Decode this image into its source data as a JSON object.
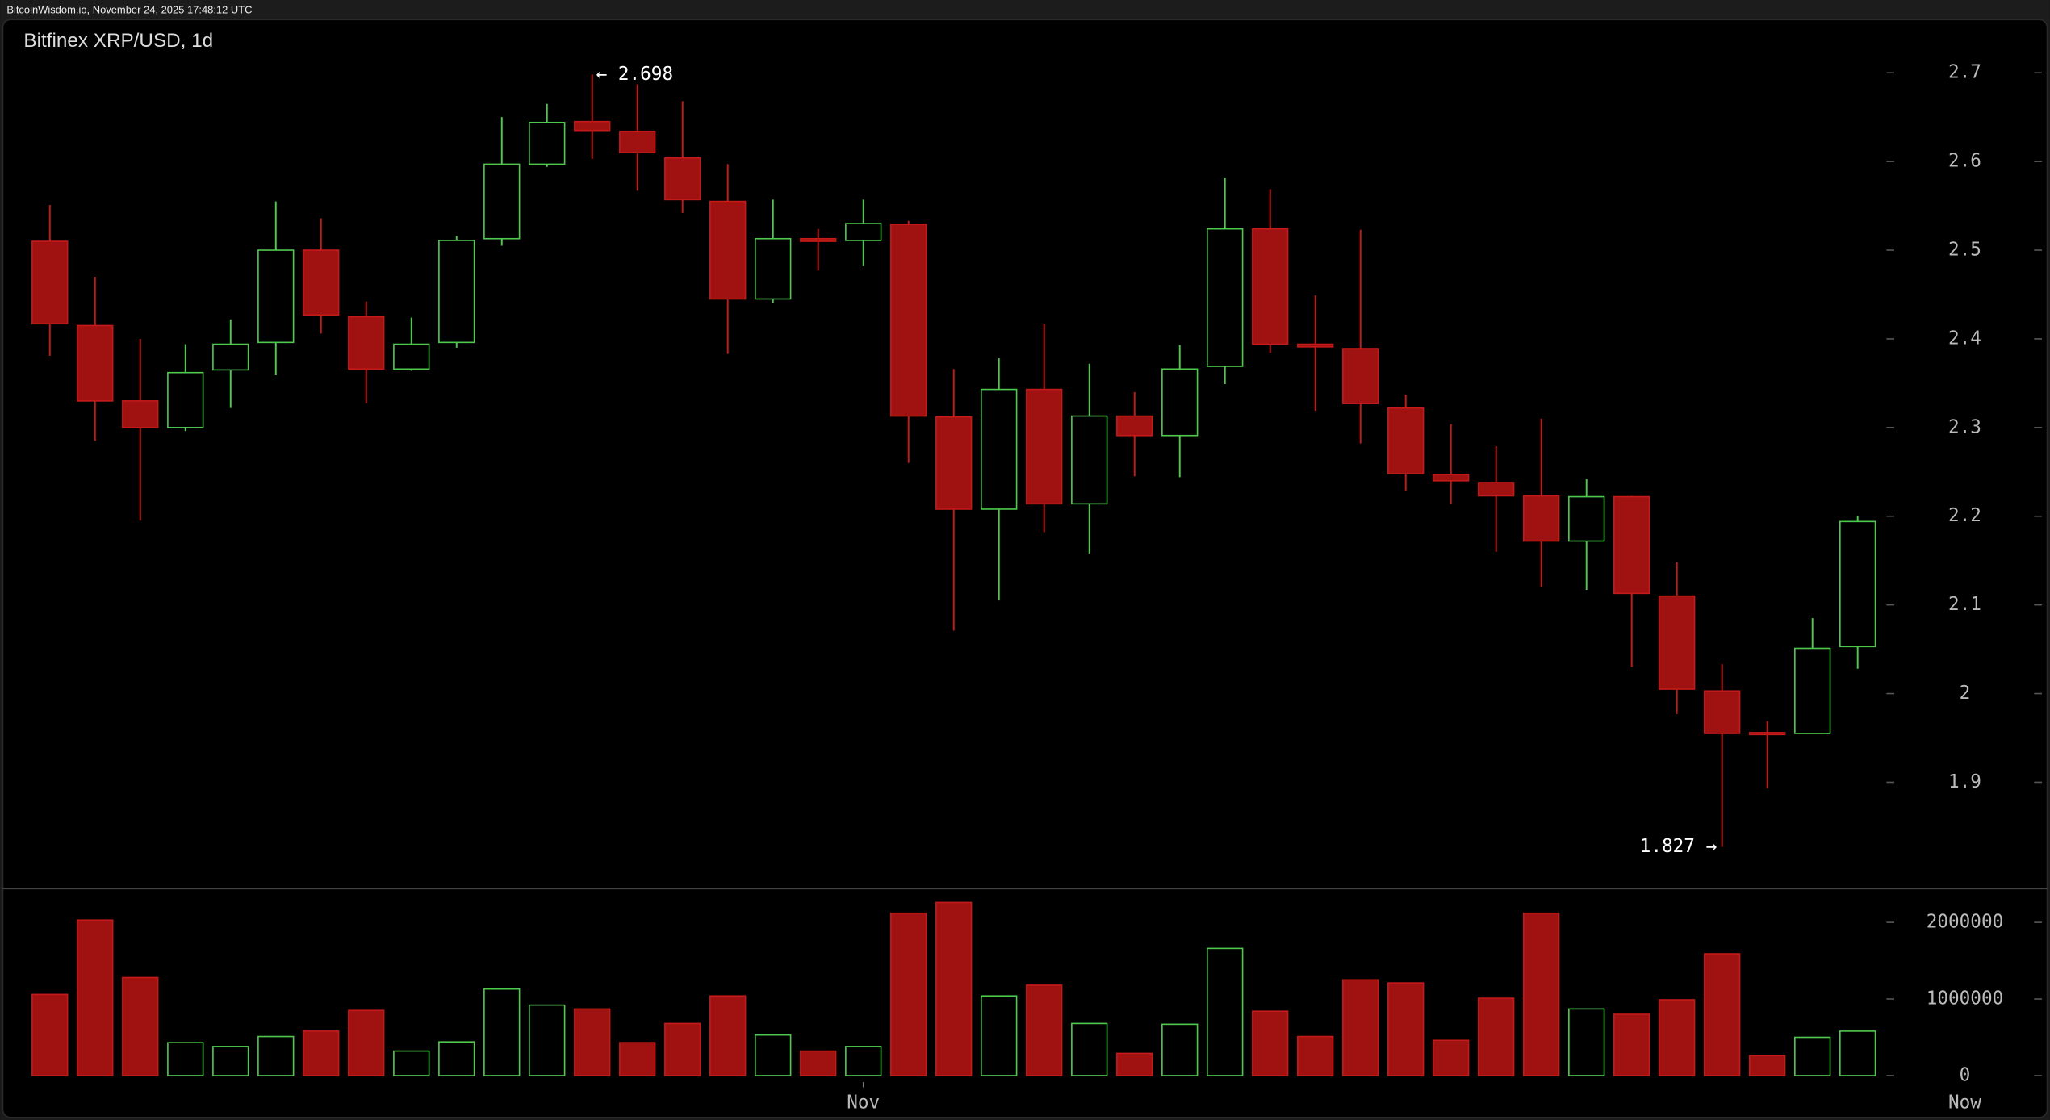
{
  "header": "BitcoinWisdom.io, November 24, 2025 17:48:12 UTC",
  "chart_data": {
    "type": "candlestick",
    "title": "Bitfinex XRP/USD, 1d",
    "categories": [
      null,
      null,
      null,
      null,
      null,
      null,
      null,
      null,
      null,
      null,
      null,
      null,
      null,
      null,
      null,
      null,
      null,
      null,
      "Nov",
      null,
      null,
      null,
      null,
      null,
      null,
      null,
      null,
      null,
      null,
      null,
      null,
      null,
      null,
      null,
      null,
      null,
      null,
      null,
      null,
      null,
      null
    ],
    "x_end_label": "Now",
    "open": [
      2.51,
      2.415,
      2.33,
      2.3,
      2.365,
      2.396,
      2.5,
      2.425,
      2.366,
      2.396,
      2.513,
      2.597,
      2.645,
      2.634,
      2.604,
      2.555,
      2.445,
      2.513,
      2.511,
      2.529,
      2.312,
      2.208,
      2.343,
      2.214,
      2.313,
      2.291,
      2.369,
      2.524,
      2.394,
      2.389,
      2.322,
      2.247,
      2.238,
      2.223,
      2.172,
      2.222,
      2.11,
      2.003,
      1.956,
      1.955,
      2.053
    ],
    "high": [
      2.551,
      2.47,
      2.4,
      2.394,
      2.422,
      2.555,
      2.536,
      2.442,
      2.424,
      2.516,
      2.65,
      2.665,
      2.698,
      2.687,
      2.668,
      2.597,
      2.557,
      2.524,
      2.557,
      2.533,
      2.366,
      2.378,
      2.417,
      2.372,
      2.34,
      2.393,
      2.582,
      2.569,
      2.449,
      2.523,
      2.337,
      2.304,
      2.279,
      2.31,
      2.242,
      2.223,
      2.148,
      2.033,
      1.969,
      2.085,
      2.2
    ],
    "low": [
      2.381,
      2.285,
      2.195,
      2.296,
      2.322,
      2.359,
      2.406,
      2.327,
      2.364,
      2.39,
      2.505,
      2.594,
      2.603,
      2.567,
      2.542,
      2.383,
      2.44,
      2.477,
      2.482,
      2.26,
      2.071,
      2.105,
      2.182,
      2.158,
      2.245,
      2.244,
      2.349,
      2.384,
      2.319,
      2.282,
      2.229,
      2.214,
      2.16,
      2.12,
      2.117,
      2.03,
      1.977,
      1.827,
      1.893,
      1.955,
      2.028
    ],
    "close": [
      2.417,
      2.33,
      2.3,
      2.362,
      2.394,
      2.5,
      2.427,
      2.366,
      2.394,
      2.511,
      2.597,
      2.644,
      2.635,
      2.61,
      2.557,
      2.445,
      2.513,
      2.51,
      2.53,
      2.313,
      2.208,
      2.343,
      2.214,
      2.313,
      2.291,
      2.366,
      2.524,
      2.394,
      2.391,
      2.327,
      2.248,
      2.24,
      2.223,
      2.172,
      2.222,
      2.113,
      2.005,
      1.955,
      1.955,
      2.051,
      2.194
    ],
    "volume": [
      1060000,
      2030000,
      1280000,
      430000,
      380000,
      510000,
      580000,
      850000,
      320000,
      440000,
      1130000,
      920000,
      870000,
      430000,
      680000,
      1040000,
      530000,
      320000,
      380000,
      2120000,
      2260000,
      1040000,
      1180000,
      680000,
      290000,
      670000,
      1660000,
      840000,
      510000,
      1250000,
      1210000,
      460000,
      1010000,
      2120000,
      870000,
      800000,
      990000,
      1590000,
      260000,
      500000,
      580000
    ],
    "up_color": "#4ec94e",
    "down_color": "#a01212",
    "ylim": [
      1.78,
      2.76
    ],
    "yticks": [
      1.9,
      2,
      2.1,
      2.2,
      2.3,
      2.4,
      2.5,
      2.6,
      2.7
    ],
    "volume_ylim": [
      -85000,
      2440000
    ],
    "volume_yticks": [
      0,
      1000000,
      2000000
    ],
    "high_label": "← 2.698",
    "low_label": "1.827 →",
    "grid": false
  }
}
